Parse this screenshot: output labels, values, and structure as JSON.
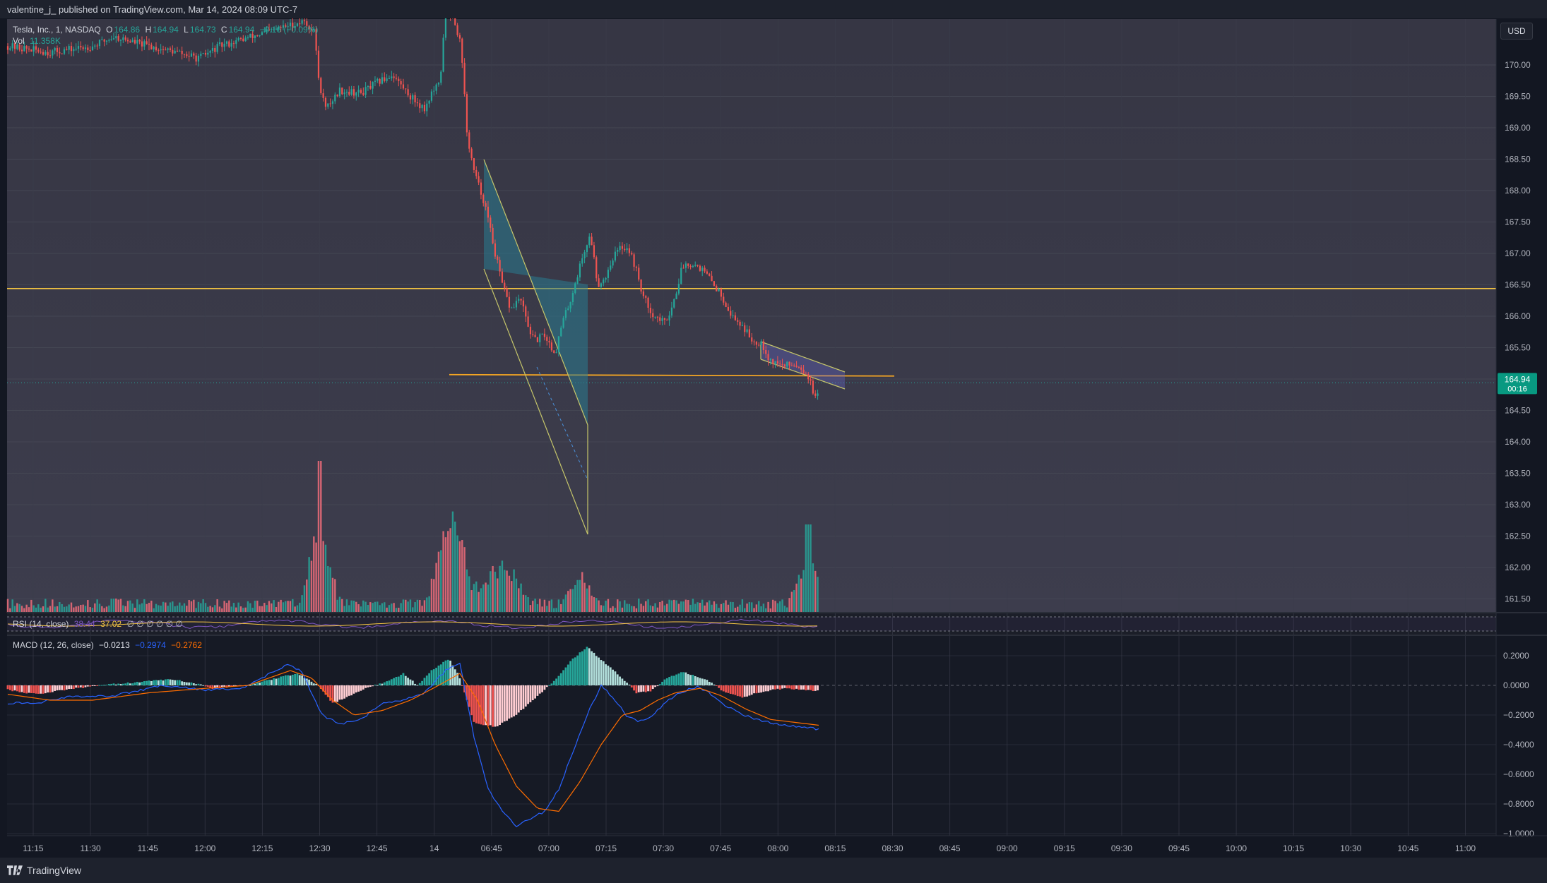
{
  "header": {
    "published": "valentine_j_ published on TradingView.com, Mar 14, 2024 08:09 UTC-7"
  },
  "legend": {
    "symbol": "Tesla, Inc., 1, NASDAQ",
    "open_label": "O",
    "open": "164.86",
    "high_label": "H",
    "high": "164.94",
    "low_label": "L",
    "low": "164.73",
    "close_label": "C",
    "close": "164.94",
    "change": "−0.16 (−0.09%)",
    "volume_label": "Vol",
    "volume": "11.358K"
  },
  "rsi_legend": {
    "label": "RSI (14, close)",
    "value1": "38.44",
    "value2": "37.02",
    "extra": "∅ ∅ ∅ ∅ ∅ ∅"
  },
  "macd_legend": {
    "label": "MACD (12, 26, close)",
    "hist": "−0.0213",
    "macd": "−0.2974",
    "signal": "−0.2762"
  },
  "currency_button": "USD",
  "price_badge": {
    "price": "164.94",
    "countdown": "00:16"
  },
  "footer": {
    "brand": "TradingView"
  },
  "colors": {
    "bg_top": "#363644",
    "bg_bottom": "#131722",
    "up": "#26a69a",
    "down": "#ef5350",
    "up_vol": "#26a69a",
    "down_vol": "#f06c7a",
    "hline": "#f5c542",
    "macd_line": "#2962ff",
    "signal_line": "#ff6d00",
    "rsi_line": "#7e57c2",
    "rsi_ma": "#f5c542"
  },
  "chart_data": [
    {
      "type": "candlestick",
      "title": "Tesla, Inc., 1, NASDAQ",
      "price_axis_ticks": [
        "170.00",
        "169.50",
        "169.00",
        "168.50",
        "168.00",
        "167.50",
        "167.00",
        "166.50",
        "166.00",
        "165.50",
        "165.00",
        "164.50",
        "164.00",
        "163.50",
        "163.00",
        "162.50",
        "162.00",
        "161.50"
      ],
      "price_axis_values": [
        170.0,
        169.5,
        169.0,
        168.5,
        168.0,
        167.5,
        167.0,
        166.5,
        166.0,
        165.5,
        165.0,
        164.5,
        164.0,
        163.5,
        163.0,
        162.5,
        162.0,
        161.5
      ],
      "ylim": [
        161.3,
        170.7
      ],
      "time_ticks": [
        "11:15",
        "11:30",
        "11:45",
        "12:00",
        "12:15",
        "12:30",
        "12:45",
        "14",
        "06:45",
        "07:00",
        "07:15",
        "07:30",
        "07:45",
        "08:00",
        "08:15",
        "08:30",
        "08:45",
        "09:00",
        "09:15",
        "09:30",
        "09:45",
        "10:00",
        "10:15",
        "10:30",
        "10:45",
        "11:00"
      ],
      "horizontal_lines": [
        166.44,
        165.07
      ],
      "last_price": 164.94,
      "path_anchors": [
        [
          0,
          170.3
        ],
        [
          60,
          170.2
        ],
        [
          120,
          170.3
        ],
        [
          150,
          170.45
        ],
        [
          200,
          170.3
        ],
        [
          240,
          170.2
        ],
        [
          270,
          170.1
        ],
        [
          300,
          170.3
        ],
        [
          375,
          170.55
        ],
        [
          420,
          170.7
        ],
        [
          435,
          170.5
        ],
        [
          440,
          169.75
        ],
        [
          450,
          169.3
        ],
        [
          470,
          169.6
        ],
        [
          500,
          169.55
        ],
        [
          520,
          169.7
        ],
        [
          545,
          169.85
        ],
        [
          555,
          169.7
        ],
        [
          570,
          169.5
        ],
        [
          590,
          169.3
        ],
        [
          600,
          169.55
        ],
        [
          612,
          169.7
        ],
        [
          618,
          170.7
        ],
        [
          630,
          170.8
        ],
        [
          642,
          170.3
        ],
        [
          650,
          168.9
        ],
        [
          660,
          168.3
        ],
        [
          675,
          167.8
        ],
        [
          690,
          167.0
        ],
        [
          700,
          166.5
        ],
        [
          712,
          166.1
        ],
        [
          725,
          166.3
        ],
        [
          735,
          165.9
        ],
        [
          745,
          165.6
        ],
        [
          760,
          165.7
        ],
        [
          775,
          165.4
        ],
        [
          785,
          165.9
        ],
        [
          795,
          166.2
        ],
        [
          805,
          166.6
        ],
        [
          815,
          167.0
        ],
        [
          825,
          167.3
        ],
        [
          835,
          166.5
        ],
        [
          845,
          166.6
        ],
        [
          857,
          166.95
        ],
        [
          868,
          167.1
        ],
        [
          878,
          167.1
        ],
        [
          888,
          166.8
        ],
        [
          900,
          166.3
        ],
        [
          915,
          166.0
        ],
        [
          930,
          165.9
        ],
        [
          942,
          166.2
        ],
        [
          955,
          166.8
        ],
        [
          965,
          166.85
        ],
        [
          978,
          166.8
        ],
        [
          990,
          166.65
        ],
        [
          1000,
          166.5
        ],
        [
          1012,
          166.3
        ],
        [
          1025,
          166.0
        ],
        [
          1040,
          165.85
        ],
        [
          1055,
          165.6
        ],
        [
          1067,
          165.6
        ],
        [
          1078,
          165.3
        ],
        [
          1090,
          165.25
        ],
        [
          1100,
          165.2
        ],
        [
          1110,
          165.25
        ],
        [
          1122,
          165.2
        ],
        [
          1133,
          165.05
        ],
        [
          1140,
          164.8
        ],
        [
          1145,
          164.65
        ],
        [
          1150,
          164.9
        ]
      ],
      "volume": {
        "base_level": "low",
        "spikes": [
          [
            441,
            0.9
          ],
          [
            615,
            0.4
          ],
          [
            628,
            0.5
          ],
          [
            640,
            0.45
          ],
          [
            685,
            0.35
          ],
          [
            712,
            0.35
          ],
          [
            810,
            0.3
          ],
          [
            1133,
            0.55
          ]
        ]
      }
    },
    {
      "type": "line",
      "title": "RSI (14, close)"
    },
    {
      "type": "histogram+line",
      "title": "MACD (12, 26, close)",
      "axis_ticks": [
        "0.2000",
        "0.0000",
        "−0.2000",
        "−0.4000",
        "−0.6000",
        "−0.8000",
        "−1.0000"
      ],
      "axis_values": [
        0.2,
        0.0,
        -0.2,
        -0.4,
        -0.6,
        -0.8,
        -1.0
      ],
      "ylim": [
        -1.0,
        0.27
      ],
      "hist_anchors": [
        [
          0,
          -0.03
        ],
        [
          40,
          -0.06
        ],
        [
          80,
          -0.03
        ],
        [
          130,
          0.0
        ],
        [
          180,
          0.02
        ],
        [
          230,
          0.04
        ],
        [
          260,
          0.02
        ],
        [
          290,
          -0.02
        ],
        [
          340,
          0.0
        ],
        [
          380,
          0.05
        ],
        [
          410,
          0.08
        ],
        [
          440,
          0.0
        ],
        [
          460,
          -0.12
        ],
        [
          480,
          -0.08
        ],
        [
          505,
          -0.02
        ],
        [
          540,
          0.03
        ],
        [
          560,
          0.08
        ],
        [
          580,
          0.0
        ],
        [
          600,
          0.1
        ],
        [
          625,
          0.18
        ],
        [
          640,
          0.05
        ],
        [
          660,
          -0.25
        ],
        [
          690,
          -0.28
        ],
        [
          720,
          -0.2
        ],
        [
          755,
          -0.05
        ],
        [
          775,
          0.04
        ],
        [
          800,
          0.18
        ],
        [
          820,
          0.26
        ],
        [
          845,
          0.15
        ],
        [
          870,
          0.05
        ],
        [
          890,
          -0.05
        ],
        [
          910,
          -0.04
        ],
        [
          930,
          0.04
        ],
        [
          955,
          0.09
        ],
        [
          990,
          0.04
        ],
        [
          1015,
          -0.05
        ],
        [
          1040,
          -0.08
        ],
        [
          1070,
          -0.04
        ],
        [
          1100,
          -0.02
        ],
        [
          1133,
          -0.03
        ],
        [
          1150,
          -0.04
        ]
      ],
      "macd_anchors": [
        [
          0,
          -0.12
        ],
        [
          40,
          -0.12
        ],
        [
          80,
          -0.08
        ],
        [
          150,
          -0.07
        ],
        [
          220,
          -0.0
        ],
        [
          280,
          -0.03
        ],
        [
          330,
          -0.02
        ],
        [
          360,
          0.05
        ],
        [
          395,
          0.14
        ],
        [
          415,
          0.1
        ],
        [
          445,
          -0.2
        ],
        [
          470,
          -0.26
        ],
        [
          500,
          -0.23
        ],
        [
          530,
          -0.12
        ],
        [
          560,
          -0.1
        ],
        [
          590,
          -0.05
        ],
        [
          620,
          0.1
        ],
        [
          640,
          0.15
        ],
        [
          660,
          -0.35
        ],
        [
          680,
          -0.7
        ],
        [
          700,
          -0.85
        ],
        [
          720,
          -0.95
        ],
        [
          740,
          -0.9
        ],
        [
          760,
          -0.85
        ],
        [
          780,
          -0.7
        ],
        [
          800,
          -0.45
        ],
        [
          820,
          -0.2
        ],
        [
          840,
          -0.0
        ],
        [
          860,
          -0.1
        ],
        [
          875,
          -0.2
        ],
        [
          890,
          -0.24
        ],
        [
          910,
          -0.22
        ],
        [
          930,
          -0.12
        ],
        [
          950,
          -0.05
        ],
        [
          975,
          -0.01
        ],
        [
          990,
          -0.04
        ],
        [
          1010,
          -0.12
        ],
        [
          1040,
          -0.2
        ],
        [
          1070,
          -0.24
        ],
        [
          1100,
          -0.27
        ],
        [
          1130,
          -0.28
        ],
        [
          1150,
          -0.3
        ]
      ],
      "signal_anchors": [
        [
          0,
          -0.06
        ],
        [
          60,
          -0.1
        ],
        [
          120,
          -0.1
        ],
        [
          200,
          -0.05
        ],
        [
          280,
          -0.02
        ],
        [
          340,
          0.0
        ],
        [
          400,
          0.1
        ],
        [
          430,
          0.05
        ],
        [
          460,
          -0.1
        ],
        [
          490,
          -0.2
        ],
        [
          530,
          -0.17
        ],
        [
          570,
          -0.1
        ],
        [
          610,
          0.0
        ],
        [
          640,
          0.08
        ],
        [
          665,
          -0.1
        ],
        [
          690,
          -0.4
        ],
        [
          720,
          -0.68
        ],
        [
          750,
          -0.83
        ],
        [
          780,
          -0.85
        ],
        [
          810,
          -0.65
        ],
        [
          840,
          -0.4
        ],
        [
          870,
          -0.2
        ],
        [
          895,
          -0.17
        ],
        [
          920,
          -0.1
        ],
        [
          945,
          -0.05
        ],
        [
          980,
          -0.02
        ],
        [
          1010,
          -0.07
        ],
        [
          1045,
          -0.16
        ],
        [
          1080,
          -0.23
        ],
        [
          1115,
          -0.25
        ],
        [
          1150,
          -0.27
        ]
      ]
    }
  ]
}
